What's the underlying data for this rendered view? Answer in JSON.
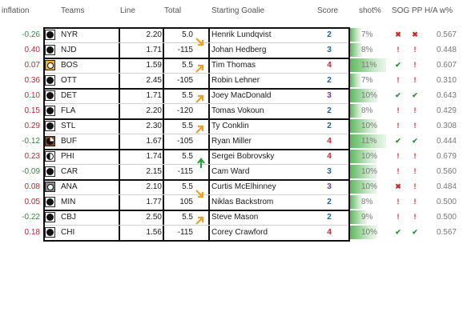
{
  "headers": {
    "inflation": "inflation",
    "teams": "Teams",
    "line": "Line",
    "total": "Total",
    "goalie": "Starting Goalie",
    "score": "Score",
    "shot": "shot%",
    "sogpp": "SOG PP",
    "ha": "H/A w%"
  },
  "rows": [
    {
      "inflation": "-0.26",
      "team": "NYR",
      "line": "2.20",
      "total": "5.0",
      "goalie": "Henrik Lundqvist",
      "score": "2",
      "shot": "7%",
      "shot_level": 0.22,
      "sog": "✖",
      "pp": "✖",
      "ha": "0.567"
    },
    {
      "inflation": "0.40",
      "team": "NJD",
      "line": "1.71",
      "total": "-115",
      "goalie": "Johan Hedberg",
      "score": "3",
      "shot": "8%",
      "shot_level": 0.25,
      "sog": "!",
      "pp": "!",
      "ha": "0.448"
    },
    {
      "inflation": "0.07",
      "team": "BOS",
      "line": "1.59",
      "total": "5.5",
      "goalie": "Tim Thomas",
      "score": "4",
      "shot": "11%",
      "shot_level": 0.75,
      "sog": "✔",
      "pp": "!",
      "ha": "0.607"
    },
    {
      "inflation": "0.36",
      "team": "OTT",
      "line": "2.45",
      "total": "-105",
      "goalie": "Robin Lehner",
      "score": "2",
      "shot": "7%",
      "shot_level": 0.22,
      "sog": "!",
      "pp": "!",
      "ha": "0.310"
    },
    {
      "inflation": "0.10",
      "team": "DET",
      "line": "1.71",
      "total": "5.5",
      "goalie": "Joey MacDonald",
      "score": "3",
      "shot": "10%",
      "shot_level": 0.55,
      "sog": "✔",
      "pp": "✔",
      "ha": "0.643"
    },
    {
      "inflation": "0.15",
      "team": "FLA",
      "line": "2.20",
      "total": "-120",
      "goalie": "Tomas Vokoun",
      "score": "2",
      "shot": "8%",
      "shot_level": 0.25,
      "sog": "!",
      "pp": "!",
      "ha": "0.429"
    },
    {
      "inflation": "0.29",
      "team": "STL",
      "line": "2.30",
      "total": "5.5",
      "goalie": "Ty Conklin",
      "score": "2",
      "shot": "10%",
      "shot_level": 0.55,
      "sog": "!",
      "pp": "!",
      "ha": "0.308"
    },
    {
      "inflation": "-0.12",
      "team": "BUF",
      "line": "1.67",
      "total": "-105",
      "goalie": "Ryan Miller",
      "score": "4",
      "shot": "11%",
      "shot_level": 0.75,
      "sog": "✔",
      "pp": "✔",
      "ha": "0.444"
    },
    {
      "inflation": "0.23",
      "team": "PHI",
      "line": "1.74",
      "total": "5.5",
      "goalie": "Sergei Bobrovsky",
      "score": "4",
      "shot": "10%",
      "shot_level": 0.55,
      "sog": "!",
      "pp": "!",
      "ha": "0.679"
    },
    {
      "inflation": "-0.09",
      "team": "CAR",
      "line": "2.15",
      "total": "-115",
      "goalie": "Cam Ward",
      "score": "3",
      "shot": "10%",
      "shot_level": 0.55,
      "sog": "!",
      "pp": "!",
      "ha": "0.560"
    },
    {
      "inflation": "0.08",
      "team": "ANA",
      "line": "2.10",
      "total": "5.5",
      "goalie": "Curtis McElhinney",
      "score": "3",
      "shot": "10%",
      "shot_level": 0.55,
      "sog": "✖",
      "pp": "!",
      "ha": "0.484"
    },
    {
      "inflation": "0.05",
      "team": "MIN",
      "line": "1.77",
      "total": "105",
      "goalie": "Niklas Backstrom",
      "score": "2",
      "shot": "8%",
      "shot_level": 0.25,
      "sog": "!",
      "pp": "!",
      "ha": "0.500"
    },
    {
      "inflation": "-0.22",
      "team": "CBJ",
      "line": "2.50",
      "total": "5.5",
      "goalie": "Steve Mason",
      "score": "2",
      "shot": "9%",
      "shot_level": 0.35,
      "sog": "!",
      "pp": "!",
      "ha": "0.500"
    },
    {
      "inflation": "0.18",
      "team": "CHI",
      "line": "1.56",
      "total": "-115",
      "goalie": "Corey Crawford",
      "score": "4",
      "shot": "10%",
      "shot_level": 0.55,
      "sog": "✔",
      "pp": "✔",
      "ha": "0.567"
    }
  ]
}
